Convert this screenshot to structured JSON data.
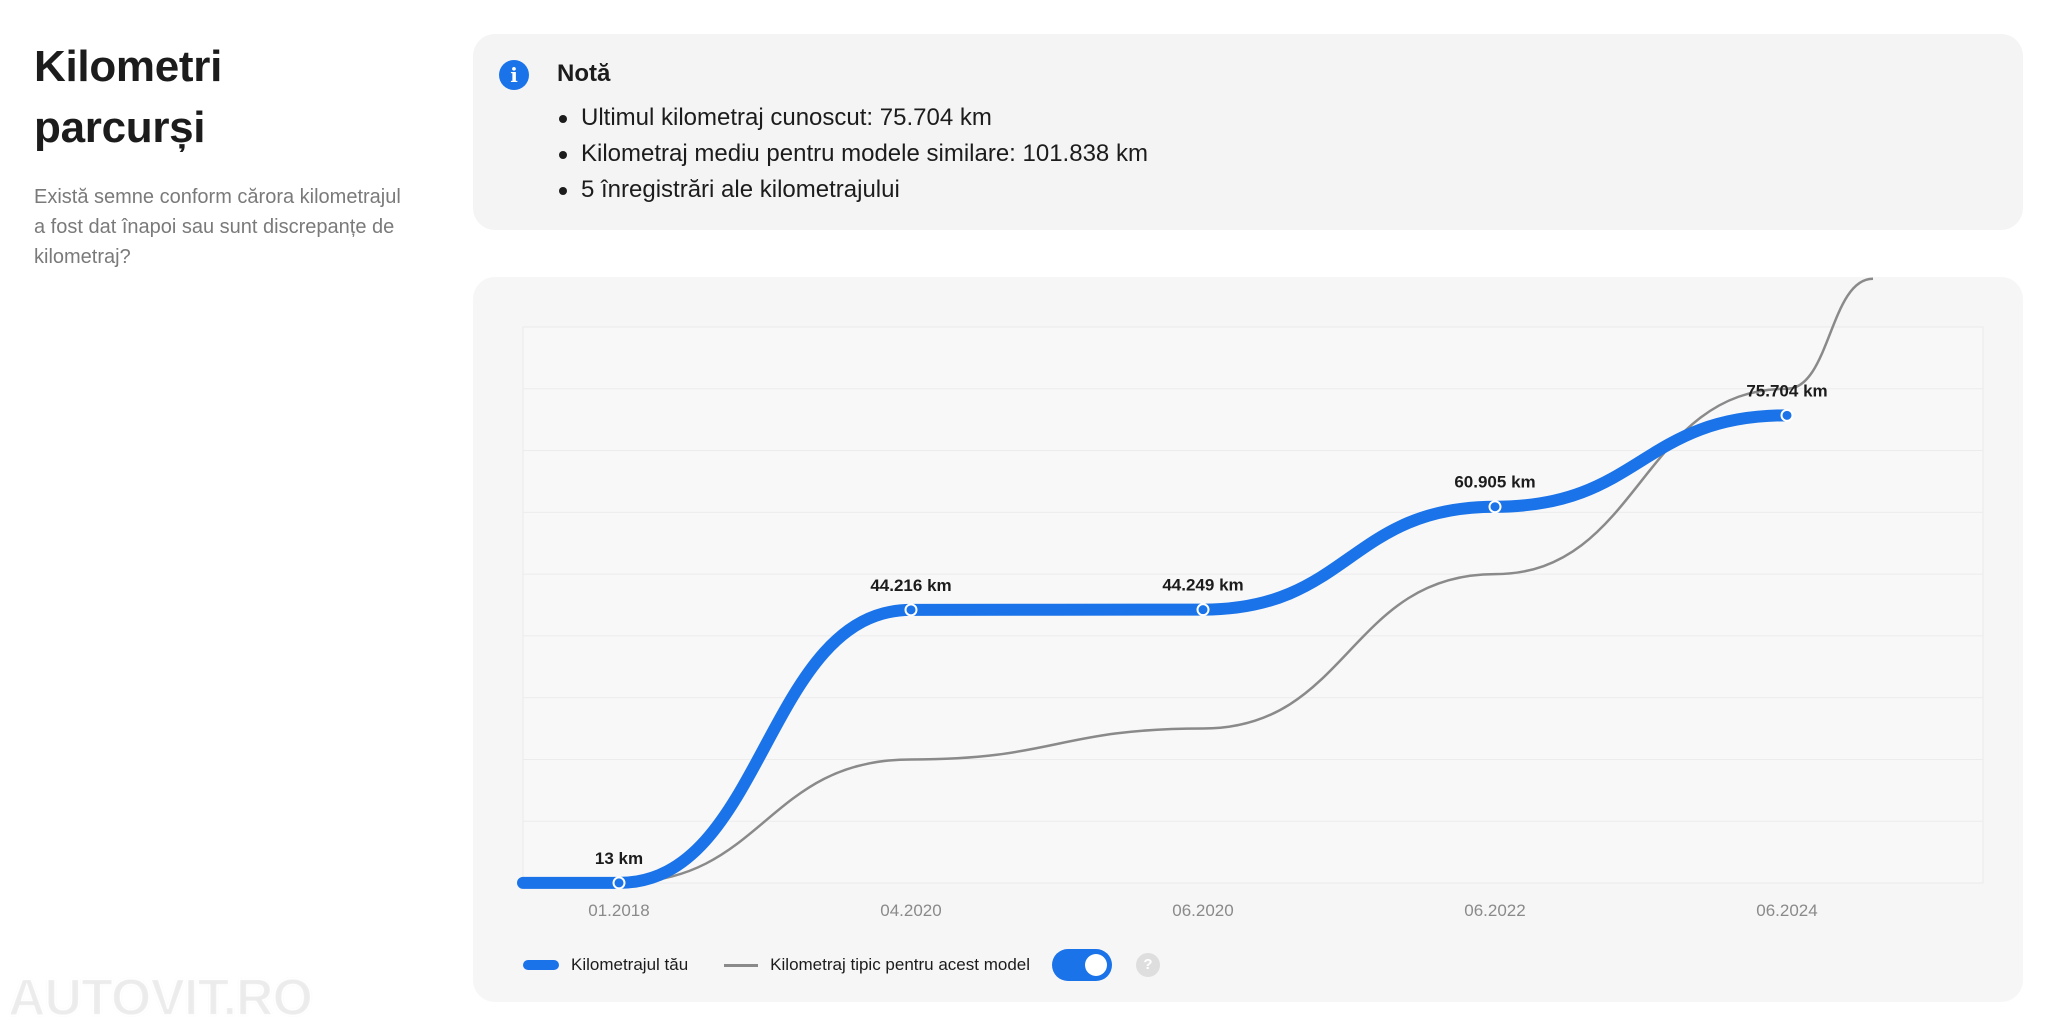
{
  "sidebar": {
    "title_line1": "Kilometri",
    "title_line2": "parcurși",
    "subtitle": "Există semne conform cărora kilometrajul a fost dat înapoi sau sunt discrepanțe de kilometraj?"
  },
  "note": {
    "title": "Notă",
    "items": [
      "Ultimul kilometraj cunoscut: 75.704 km",
      "Kilometraj mediu pentru modele similare: 101.838 km",
      "5 înregistrări ale kilometrajului"
    ]
  },
  "legend": {
    "your_mileage": "Kilometrajul tău",
    "typical_mileage": "Kilometraj tipic pentru acest model",
    "toggle_on": true,
    "help": "?"
  },
  "colors": {
    "accent": "#1a73e8",
    "typical_line": "#8a8a8a"
  },
  "watermark": "AUTOVIT.RO",
  "chart_data": {
    "type": "line",
    "x_ticks": [
      "01.2018",
      "04.2020",
      "06.2020",
      "06.2022",
      "06.2024"
    ],
    "y_range": [
      0,
      90000
    ],
    "grid": true,
    "series": [
      {
        "name": "Kilometrajul tău",
        "points": [
          {
            "x": "01.2018",
            "y": 13,
            "label": "13 km"
          },
          {
            "x": "04.2020",
            "y": 44216,
            "label": "44.216 km"
          },
          {
            "x": "06.2020",
            "y": 44249,
            "label": "44.249 km"
          },
          {
            "x": "06.2022",
            "y": 60905,
            "label": "60.905 km"
          },
          {
            "x": "06.2024",
            "y": 75704,
            "label": "75.704 km"
          }
        ]
      },
      {
        "name": "Kilometraj tipic pentru acest model",
        "points": [
          {
            "x": "01.2018",
            "y": 0
          },
          {
            "x": "04.2020",
            "y": 20000
          },
          {
            "x": "06.2020",
            "y": 25000
          },
          {
            "x": "06.2022",
            "y": 50000
          },
          {
            "x": "06.2024",
            "y": 80000
          }
        ]
      }
    ]
  }
}
